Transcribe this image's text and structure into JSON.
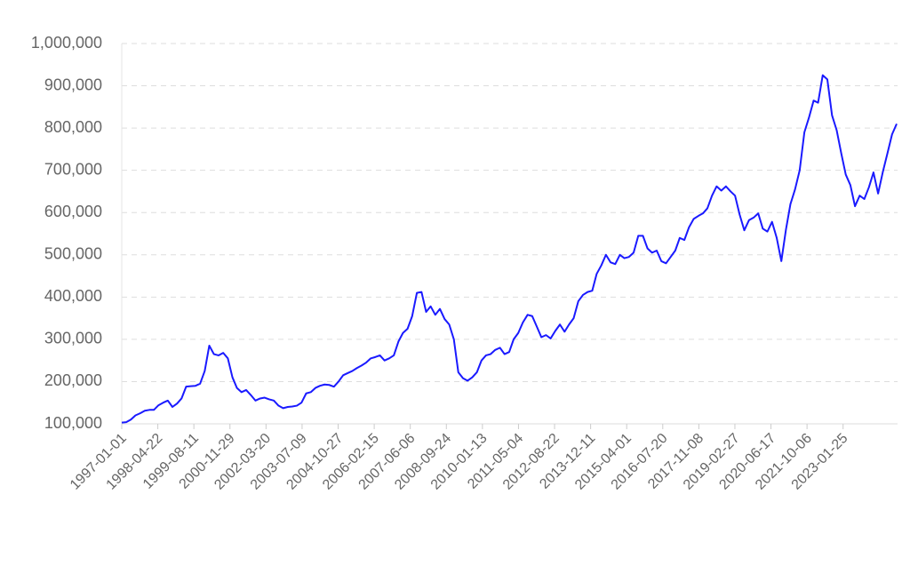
{
  "chart_data": {
    "type": "line",
    "color": "#1a1aff",
    "grid": true,
    "xlim": [
      "1997-01-01",
      "2025-01-01"
    ],
    "xticks": [
      "1997-01-01",
      "1998-04-22",
      "1999-08-11",
      "2000-11-29",
      "2002-03-20",
      "2003-07-09",
      "2004-10-27",
      "2006-02-15",
      "2007-06-06",
      "2008-09-24",
      "2010-01-13",
      "2011-05-04",
      "2012-08-22",
      "2013-12-11",
      "2015-04-01",
      "2016-07-20",
      "2017-11-08",
      "2019-02-27",
      "2020-06-17",
      "2021-10-06",
      "2023-01-25"
    ],
    "ylim": [
      100000,
      1000000
    ],
    "yticks": [
      {
        "value": 100000,
        "label": "100,000"
      },
      {
        "value": 200000,
        "label": "200,000"
      },
      {
        "value": 300000,
        "label": "300,000"
      },
      {
        "value": 400000,
        "label": "400,000"
      },
      {
        "value": 500000,
        "label": "500,000"
      },
      {
        "value": 600000,
        "label": "600,000"
      },
      {
        "value": 700000,
        "label": "700,000"
      },
      {
        "value": 800000,
        "label": "800,000"
      },
      {
        "value": 900000,
        "label": "900,000"
      },
      {
        "value": 1000000,
        "label": "1,000,000"
      }
    ],
    "x": [
      "1997-01-01",
      "1997-03-01",
      "1997-05-01",
      "1997-07-01",
      "1997-09-01",
      "1997-11-01",
      "1998-01-01",
      "1998-03-01",
      "1998-05-01",
      "1998-07-01",
      "1998-09-01",
      "1998-11-01",
      "1999-01-01",
      "1999-03-01",
      "1999-05-01",
      "1999-07-01",
      "1999-09-01",
      "1999-11-01",
      "2000-01-01",
      "2000-03-01",
      "2000-05-01",
      "2000-07-01",
      "2000-09-01",
      "2000-11-01",
      "2001-01-01",
      "2001-03-01",
      "2001-05-01",
      "2001-07-01",
      "2001-09-01",
      "2001-11-01",
      "2002-01-01",
      "2002-03-01",
      "2002-05-01",
      "2002-07-01",
      "2002-09-01",
      "2002-11-01",
      "2003-01-01",
      "2003-03-01",
      "2003-05-01",
      "2003-07-01",
      "2003-09-01",
      "2003-11-01",
      "2004-01-01",
      "2004-03-01",
      "2004-05-01",
      "2004-07-01",
      "2004-09-01",
      "2004-11-01",
      "2005-01-01",
      "2005-03-01",
      "2005-05-01",
      "2005-07-01",
      "2005-09-01",
      "2005-11-01",
      "2006-01-01",
      "2006-03-01",
      "2006-05-01",
      "2006-07-01",
      "2006-09-01",
      "2006-11-01",
      "2007-01-01",
      "2007-03-01",
      "2007-05-01",
      "2007-07-01",
      "2007-09-01",
      "2007-11-01",
      "2008-01-01",
      "2008-03-01",
      "2008-05-01",
      "2008-07-01",
      "2008-09-01",
      "2008-11-01",
      "2009-01-01",
      "2009-03-01",
      "2009-05-01",
      "2009-07-01",
      "2009-09-01",
      "2009-11-01",
      "2010-01-01",
      "2010-03-01",
      "2010-05-01",
      "2010-07-01",
      "2010-09-01",
      "2010-11-01",
      "2011-01-01",
      "2011-03-01",
      "2011-05-01",
      "2011-07-01",
      "2011-09-01",
      "2011-11-01",
      "2012-01-01",
      "2012-03-01",
      "2012-05-01",
      "2012-07-01",
      "2012-09-01",
      "2012-11-01",
      "2013-01-01",
      "2013-03-01",
      "2013-05-01",
      "2013-07-01",
      "2013-09-01",
      "2013-11-01",
      "2014-01-01",
      "2014-03-01",
      "2014-05-01",
      "2014-07-01",
      "2014-09-01",
      "2014-11-01",
      "2015-01-01",
      "2015-03-01",
      "2015-05-01",
      "2015-07-01",
      "2015-09-01",
      "2015-11-01",
      "2016-01-01",
      "2016-03-01",
      "2016-05-01",
      "2016-07-01",
      "2016-09-01",
      "2016-11-01",
      "2017-01-01",
      "2017-03-01",
      "2017-05-01",
      "2017-07-01",
      "2017-09-01",
      "2017-11-01",
      "2018-01-01",
      "2018-03-01",
      "2018-05-01",
      "2018-07-01",
      "2018-09-01",
      "2018-11-01",
      "2019-01-01",
      "2019-03-01",
      "2019-05-01",
      "2019-07-01",
      "2019-09-01",
      "2019-11-01",
      "2020-01-01",
      "2020-03-01",
      "2020-05-01",
      "2020-07-01",
      "2020-09-01",
      "2020-11-01",
      "2021-01-01",
      "2021-03-01",
      "2021-05-01",
      "2021-07-01",
      "2021-09-01",
      "2021-11-01",
      "2022-01-01",
      "2022-03-01",
      "2022-05-01",
      "2022-07-01",
      "2022-09-01",
      "2022-11-01",
      "2023-01-01",
      "2023-03-01",
      "2023-05-01",
      "2023-07-01",
      "2023-09-01",
      "2023-11-01",
      "2024-01-01",
      "2024-03-01",
      "2024-05-01",
      "2024-07-01",
      "2024-09-01",
      "2024-11-01",
      "2025-01-01"
    ],
    "values": [
      103000,
      104000,
      110000,
      120000,
      125000,
      131000,
      133000,
      133000,
      144000,
      150000,
      155000,
      140000,
      148000,
      160000,
      188000,
      189000,
      190000,
      195000,
      225000,
      285000,
      265000,
      262000,
      268000,
      255000,
      210000,
      185000,
      175000,
      180000,
      168000,
      155000,
      160000,
      162000,
      158000,
      155000,
      143000,
      137000,
      140000,
      141000,
      143000,
      150000,
      172000,
      175000,
      185000,
      190000,
      193000,
      192000,
      188000,
      200000,
      215000,
      220000,
      225000,
      232000,
      238000,
      245000,
      255000,
      258000,
      262000,
      250000,
      255000,
      262000,
      295000,
      315000,
      325000,
      355000,
      410000,
      412000,
      365000,
      378000,
      358000,
      372000,
      348000,
      335000,
      300000,
      222000,
      208000,
      202000,
      210000,
      222000,
      250000,
      262000,
      265000,
      275000,
      280000,
      265000,
      270000,
      300000,
      315000,
      340000,
      358000,
      355000,
      330000,
      305000,
      310000,
      302000,
      320000,
      335000,
      318000,
      335000,
      350000,
      390000,
      405000,
      412000,
      415000,
      455000,
      475000,
      500000,
      482000,
      478000,
      500000,
      492000,
      495000,
      505000,
      545000,
      545000,
      515000,
      505000,
      510000,
      485000,
      480000,
      495000,
      510000,
      540000,
      535000,
      565000,
      585000,
      592000,
      598000,
      610000,
      640000,
      662000,
      652000,
      662000,
      650000,
      640000,
      595000,
      558000,
      582000,
      588000,
      598000,
      562000,
      555000,
      578000,
      540000,
      485000,
      560000,
      620000,
      655000,
      700000,
      790000,
      825000,
      865000,
      860000,
      925000,
      915000,
      830000,
      795000,
      740000,
      690000,
      665000,
      615000,
      640000,
      632000,
      660000,
      695000,
      645000,
      695000,
      740000,
      785000,
      810000
    ]
  }
}
